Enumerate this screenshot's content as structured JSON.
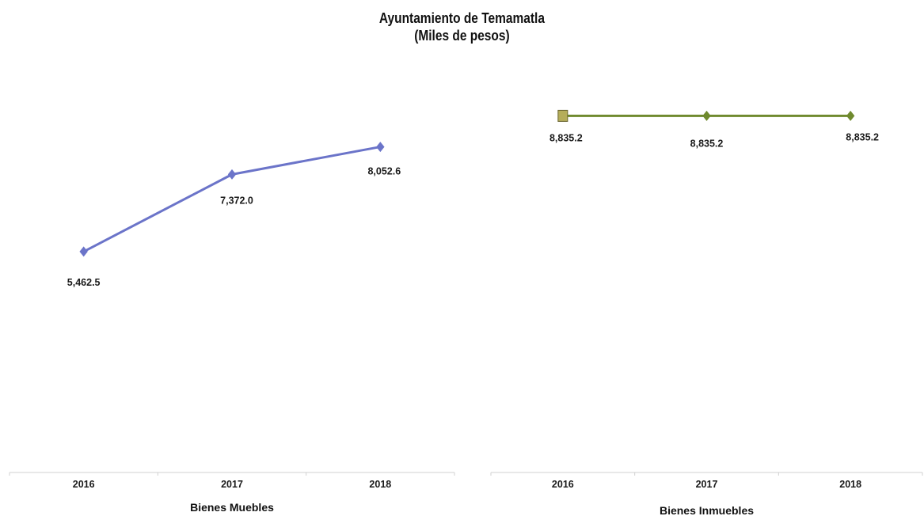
{
  "title": "Ayuntamiento de Temamatla",
  "subtitle": "(Miles de pesos)",
  "chart_data": [
    {
      "type": "line",
      "title": "Ayuntamiento de Temamatla",
      "subtitle": "(Miles de pesos)",
      "xlabel": "Bienes Muebles",
      "ylabel": "",
      "categories": [
        "2016",
        "2017",
        "2018"
      ],
      "values": [
        5462.5,
        7372.0,
        8052.6
      ],
      "data_labels": [
        "5,462.5",
        "7,372.0",
        "8,052.6"
      ],
      "ylim": [
        0,
        11000
      ],
      "grid": false,
      "legend": "none",
      "color": "#6b74c9",
      "marker": "diamond"
    },
    {
      "type": "line",
      "xlabel": "Bienes Inmuebles",
      "ylabel": "",
      "categories": [
        "2016",
        "2017",
        "2018"
      ],
      "values": [
        8835.2,
        8835.2,
        8835.2
      ],
      "data_labels": [
        "8,835.2",
        "8,835.2",
        "8,835.2"
      ],
      "ylim": [
        0,
        11000
      ],
      "grid": false,
      "legend": "none",
      "color": "#6f8a2e",
      "marker": "diamond",
      "first_marker": "square",
      "first_marker_color": "#b5ad5a"
    }
  ]
}
